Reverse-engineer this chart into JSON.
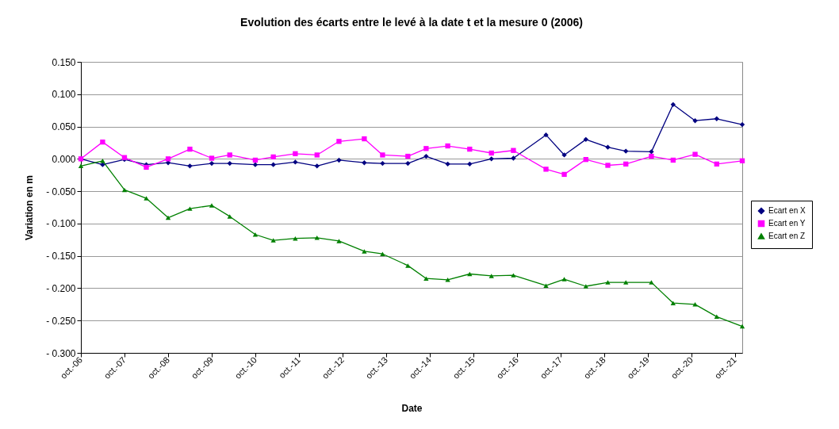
{
  "chart_data": {
    "type": "line",
    "title": "Evolution des écarts entre le levé à la date t et la mesure 0 (2006)",
    "xlabel": "Date",
    "ylabel": "Variation en m",
    "x": [
      "2006-10",
      "2007-04",
      "2007-10",
      "2008-04",
      "2008-10",
      "2009-04",
      "2009-10",
      "2010-03",
      "2010-10",
      "2011-03",
      "2011-09",
      "2012-03",
      "2012-09",
      "2013-04",
      "2013-09",
      "2014-04",
      "2014-09",
      "2015-03",
      "2015-09",
      "2016-03",
      "2016-09",
      "2017-06",
      "2017-11",
      "2018-05",
      "2018-11",
      "2019-04",
      "2019-11",
      "2020-05",
      "2020-11",
      "2021-05",
      "2021-12"
    ],
    "series": [
      {
        "name": "Ecart en X",
        "color": "#000080",
        "marker": "diamond",
        "values": [
          0.0,
          -0.009,
          -0.001,
          -0.009,
          -0.006,
          -0.011,
          -0.007,
          -0.007,
          -0.009,
          -0.009,
          -0.005,
          -0.011,
          -0.002,
          -0.006,
          -0.007,
          -0.007,
          0.004,
          -0.008,
          -0.008,
          0.0,
          0.001,
          0.037,
          0.006,
          0.03,
          0.018,
          0.012,
          0.011,
          0.084,
          0.059,
          0.062,
          0.053
        ]
      },
      {
        "name": "Ecart en Y",
        "color": "#ff00ff",
        "marker": "square",
        "values": [
          0.0,
          0.026,
          0.002,
          -0.013,
          0.0,
          0.015,
          0.001,
          0.006,
          -0.002,
          0.003,
          0.008,
          0.006,
          0.027,
          0.031,
          0.006,
          0.004,
          0.016,
          0.02,
          0.015,
          0.009,
          0.013,
          -0.016,
          -0.024,
          -0.001,
          -0.01,
          -0.008,
          0.004,
          -0.002,
          0.007,
          -0.008,
          -0.003
        ]
      },
      {
        "name": "Ecart en Z",
        "color": "#008000",
        "marker": "triangle",
        "values": [
          -0.011,
          -0.003,
          -0.048,
          -0.061,
          -0.091,
          -0.077,
          -0.072,
          -0.089,
          -0.117,
          -0.126,
          -0.123,
          -0.122,
          -0.127,
          -0.143,
          -0.147,
          -0.165,
          -0.185,
          -0.187,
          -0.178,
          -0.181,
          -0.18,
          -0.196,
          -0.186,
          -0.197,
          -0.191,
          -0.191,
          -0.191,
          -0.223,
          -0.225,
          -0.244,
          -0.259
        ]
      }
    ],
    "xlim": [
      "2006-10",
      "2021-12"
    ],
    "xticks": [
      {
        "value": "2006-10",
        "label": "oct.-06"
      },
      {
        "value": "2007-10",
        "label": "oct.-07"
      },
      {
        "value": "2008-10",
        "label": "oct.-08"
      },
      {
        "value": "2009-10",
        "label": "oct.-09"
      },
      {
        "value": "2010-10",
        "label": "oct.-10"
      },
      {
        "value": "2011-10",
        "label": "oct.-11"
      },
      {
        "value": "2012-10",
        "label": "oct.-12"
      },
      {
        "value": "2013-10",
        "label": "oct.-13"
      },
      {
        "value": "2014-10",
        "label": "oct.-14"
      },
      {
        "value": "2015-10",
        "label": "oct.-15"
      },
      {
        "value": "2016-10",
        "label": "oct.-16"
      },
      {
        "value": "2017-10",
        "label": "oct.-17"
      },
      {
        "value": "2018-10",
        "label": "oct.-18"
      },
      {
        "value": "2019-10",
        "label": "oct.-19"
      },
      {
        "value": "2020-10",
        "label": "oct.-20"
      },
      {
        "value": "2021-10",
        "label": "oct.-21"
      }
    ],
    "ylim": [
      -0.3,
      0.15
    ],
    "yticks": [
      {
        "value": -0.3,
        "label": "- 0.300"
      },
      {
        "value": -0.25,
        "label": "- 0.250"
      },
      {
        "value": -0.2,
        "label": "- 0.200"
      },
      {
        "value": -0.15,
        "label": "- 0.150"
      },
      {
        "value": -0.1,
        "label": "- 0.100"
      },
      {
        "value": -0.05,
        "label": "- 0.050"
      },
      {
        "value": 0,
        "label": "0.000"
      },
      {
        "value": 0.05,
        "label": "0.050"
      },
      {
        "value": 0.1,
        "label": "0.100"
      },
      {
        "value": 0.15,
        "label": "0.150"
      }
    ],
    "grid": "y",
    "legend": "right",
    "line_style": "solid"
  }
}
